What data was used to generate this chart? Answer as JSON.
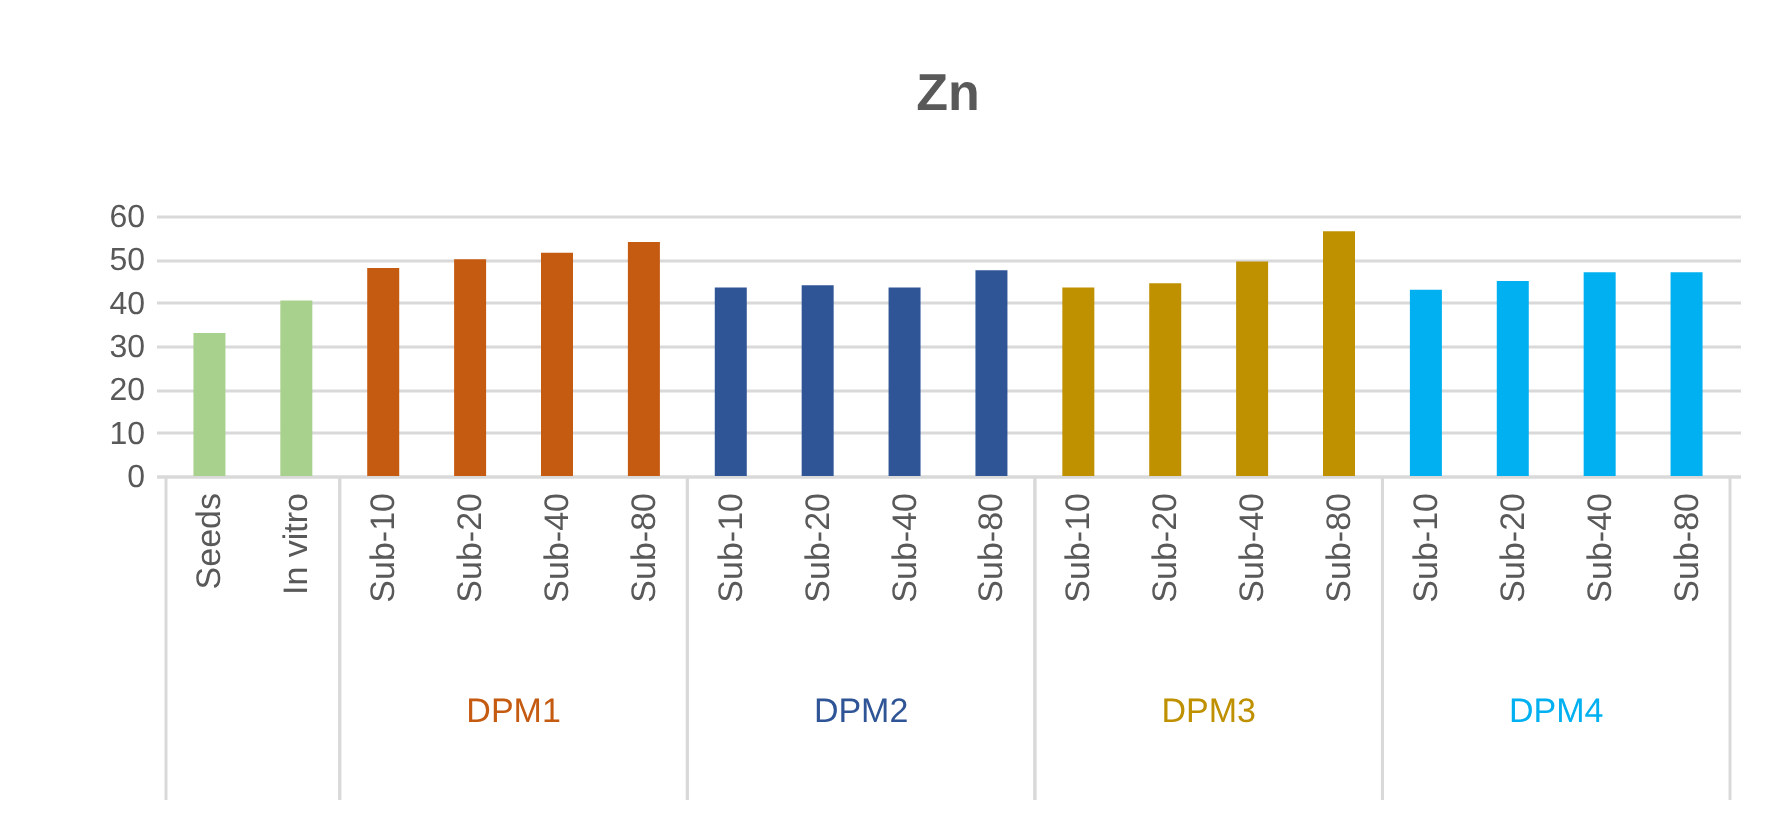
{
  "chart_data": {
    "type": "bar",
    "title": "Zn",
    "categories": [
      "Seeds",
      "In vitro",
      "Sub-10",
      "Sub-20",
      "Sub-40",
      "Sub-80",
      "Sub-10",
      "Sub-20",
      "Sub-40",
      "Sub-80",
      "Sub-10",
      "Sub-20",
      "Sub-40",
      "Sub-80",
      "Sub-10",
      "Sub-20",
      "Sub-40",
      "Sub-80"
    ],
    "series": [
      {
        "color": "#a9d18e",
        "values": [
          33,
          40.5,
          null,
          null,
          null,
          null,
          null,
          null,
          null,
          null,
          null,
          null,
          null,
          null,
          null,
          null,
          null,
          null
        ]
      },
      {
        "name": "DPM1",
        "color": "#c55a11",
        "values": [
          null,
          null,
          48,
          50,
          51.5,
          54,
          null,
          null,
          null,
          null,
          null,
          null,
          null,
          null,
          null,
          null,
          null,
          null
        ]
      },
      {
        "name": "DPM2",
        "color": "#2f5597",
        "values": [
          null,
          null,
          null,
          null,
          null,
          null,
          43.5,
          44,
          43.5,
          47.5,
          null,
          null,
          null,
          null,
          null,
          null,
          null,
          null
        ]
      },
      {
        "name": "DPM3",
        "color": "#bf9000",
        "values": [
          null,
          null,
          null,
          null,
          null,
          null,
          null,
          null,
          null,
          null,
          43.5,
          44.5,
          49.5,
          56.5,
          null,
          null,
          null,
          null
        ]
      },
      {
        "name": "DPM4",
        "color": "#00b0f0",
        "values": [
          null,
          null,
          null,
          null,
          null,
          null,
          null,
          null,
          null,
          null,
          null,
          null,
          null,
          null,
          43,
          45,
          47,
          47
        ]
      }
    ],
    "ylim": [
      0,
      60
    ],
    "yticks": [
      0,
      10,
      20,
      30,
      40,
      50,
      60
    ],
    "grid": "y",
    "legend": false
  }
}
